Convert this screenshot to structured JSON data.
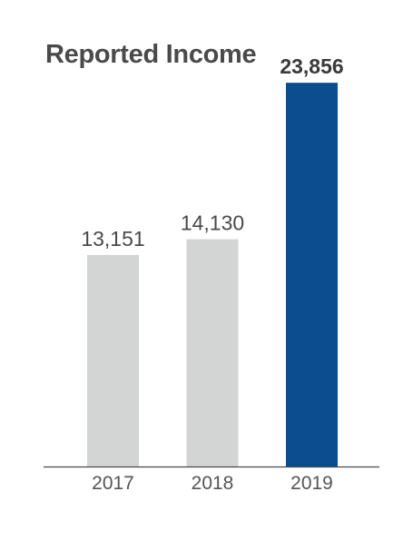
{
  "chart_data": {
    "type": "bar",
    "title": "Reported Income",
    "categories": [
      "2017",
      "2018",
      "2019"
    ],
    "values": [
      13151,
      14130,
      23856
    ],
    "data_labels": [
      "13,151",
      "14,130",
      "23,856"
    ],
    "highlight_index": 2,
    "ylim": [
      0,
      29000
    ],
    "grid": false,
    "legend": "none",
    "colors": {
      "bar": "#d3d4d4",
      "highlight": "#0b4d8f",
      "axis": "#4a4a4a"
    }
  }
}
